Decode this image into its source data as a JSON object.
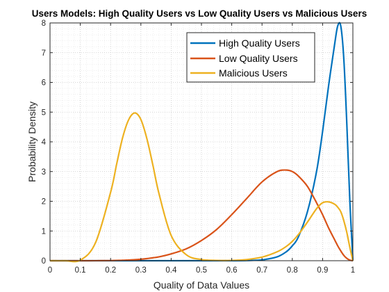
{
  "chart_data": {
    "type": "line",
    "title": "Users Models: High Quality Users vs Low Quality Users vs Malicious Users",
    "xlabel": "Quality of Data Values",
    "ylabel": "Probability Density",
    "xlim": [
      0,
      1
    ],
    "ylim": [
      0,
      8
    ],
    "xticks": [
      "0",
      "0.1",
      "0.2",
      "0.3",
      "0.4",
      "0.5",
      "0.6",
      "0.7",
      "0.8",
      "0.9",
      "1"
    ],
    "yticks": [
      "0",
      "1",
      "2",
      "3",
      "4",
      "5",
      "6",
      "7",
      "8"
    ],
    "grid": "major and minor dotted",
    "legend_position": "top-right",
    "x": [
      0.0,
      0.05,
      0.1,
      0.15,
      0.2,
      0.22,
      0.24,
      0.26,
      0.28,
      0.3,
      0.32,
      0.34,
      0.36,
      0.4,
      0.45,
      0.5,
      0.55,
      0.6,
      0.65,
      0.7,
      0.75,
      0.78,
      0.8,
      0.82,
      0.85,
      0.88,
      0.9,
      0.92,
      0.94,
      0.95,
      0.96,
      0.97,
      0.98,
      0.99,
      1.0
    ],
    "series": [
      {
        "name": "High Quality Users",
        "color": "#0072BD",
        "values": [
          0,
          0,
          0,
          0,
          0,
          0,
          0,
          0,
          0,
          0,
          0,
          0,
          0,
          0,
          0,
          0,
          0,
          0.0003,
          0.005,
          0.03,
          0.13,
          0.3,
          0.5,
          0.8,
          1.65,
          3.0,
          4.35,
          5.9,
          7.3,
          7.9,
          7.9,
          6.8,
          4.6,
          2.0,
          0.0
        ]
      },
      {
        "name": "Low Quality Users",
        "color": "#D95319",
        "values": [
          0,
          0,
          0,
          0.001,
          0.005,
          0.01,
          0.015,
          0.025,
          0.035,
          0.05,
          0.07,
          0.1,
          0.13,
          0.23,
          0.4,
          0.68,
          1.05,
          1.55,
          2.1,
          2.65,
          3.0,
          3.05,
          3.0,
          2.85,
          2.5,
          1.95,
          1.55,
          1.1,
          0.7,
          0.5,
          0.33,
          0.18,
          0.08,
          0.02,
          0.0
        ]
      },
      {
        "name": "Malicious Users",
        "color": "#EDB120",
        "values": [
          0,
          0,
          0.02,
          0.6,
          2.3,
          3.25,
          4.15,
          4.75,
          4.97,
          4.75,
          4.1,
          3.2,
          2.25,
          0.85,
          0.2,
          0.04,
          0.01,
          0.01,
          0.04,
          0.12,
          0.3,
          0.48,
          0.65,
          0.88,
          1.3,
          1.75,
          1.95,
          1.98,
          1.9,
          1.8,
          1.65,
          1.35,
          0.95,
          0.45,
          0.0
        ]
      }
    ]
  }
}
